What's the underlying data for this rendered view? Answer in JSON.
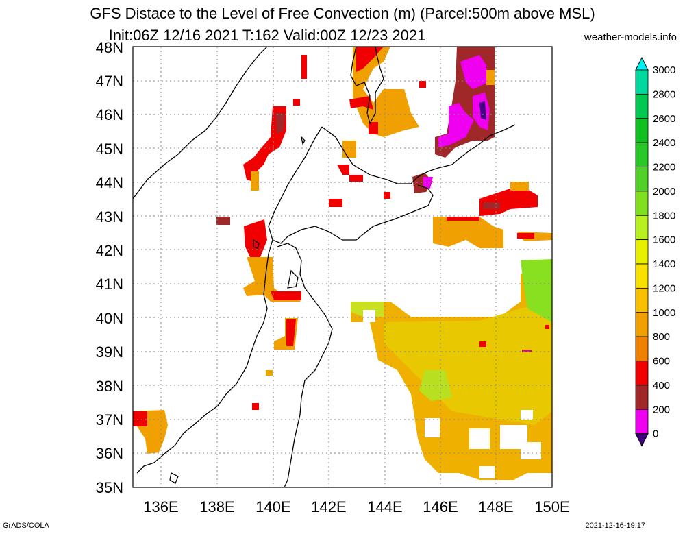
{
  "title": "GFS Distace to the Level of Free Convection (m) (Parcel:500m above MSL)",
  "subtitle": "Init:06Z 12/16 2021 T:162 Valid:00Z 12/23 2021",
  "site": "weather-models.info",
  "footer_left": "GrADS/COLA",
  "footer_right": "2021-12-16-19:17",
  "lat_labels": [
    "48N",
    "47N",
    "46N",
    "45N",
    "44N",
    "43N",
    "42N",
    "41N",
    "40N",
    "39N",
    "38N",
    "37N",
    "36N",
    "35N"
  ],
  "lon_labels": [
    "136E",
    "138E",
    "140E",
    "142E",
    "144E",
    "146E",
    "148E",
    "150E"
  ],
  "colorbar": {
    "labels": [
      "3000",
      "2800",
      "2600",
      "2400",
      "2200",
      "2000",
      "1800",
      "1600",
      "1400",
      "1200",
      "1000",
      "800",
      "600",
      "400",
      "200",
      "0"
    ],
    "colors": [
      "#00f0f0",
      "#00d8a0",
      "#00c850",
      "#10c020",
      "#28c828",
      "#50d028",
      "#80e020",
      "#b8f020",
      "#e8f000",
      "#f8e000",
      "#f8c000",
      "#f0a000",
      "#f08000",
      "#f00000",
      "#a02828",
      "#f000f0",
      "#400080"
    ]
  },
  "legend_text": {
    "units": "m",
    "parcel": "Parcel:500m above MSL"
  }
}
